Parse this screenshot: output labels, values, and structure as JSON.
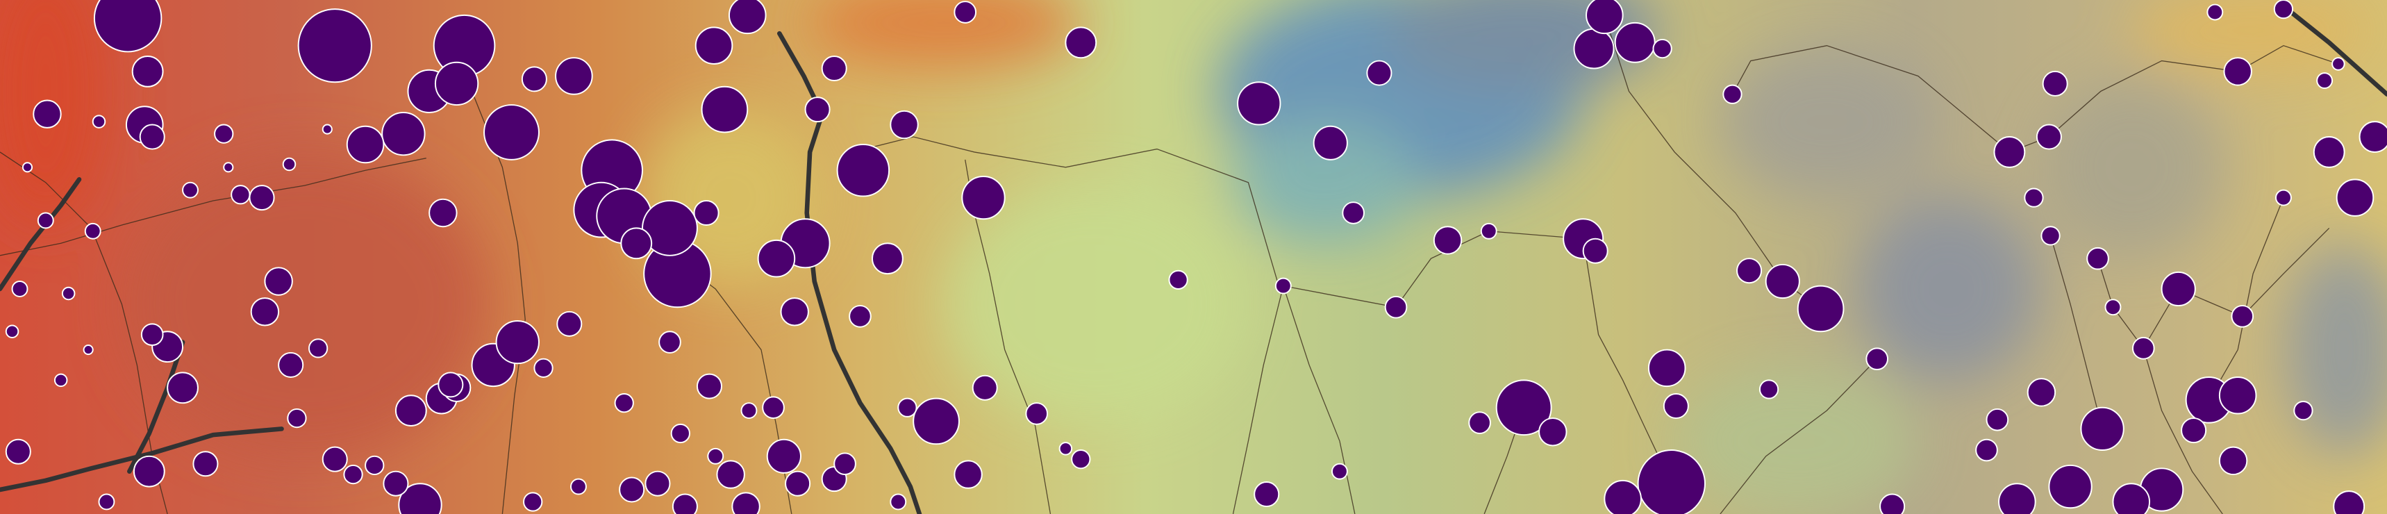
{
  "map": {
    "colors": {
      "surface_low": "#d44e34",
      "surface_mid": "#d98c4a",
      "surface_warm": "#d8bf6c",
      "surface_green": "#c6d98c",
      "surface_blue": "#5f8fb8",
      "surface_grey": "#a8a290",
      "marker_fill": "#4b006e",
      "marker_stroke": "#ffffff",
      "river": "#3a2a1a",
      "road": "#333333"
    },
    "layers": {
      "surface": "contour-surface",
      "rivers": "river-network",
      "roads": "road-lines",
      "markers": "proportional-circles"
    }
  }
}
